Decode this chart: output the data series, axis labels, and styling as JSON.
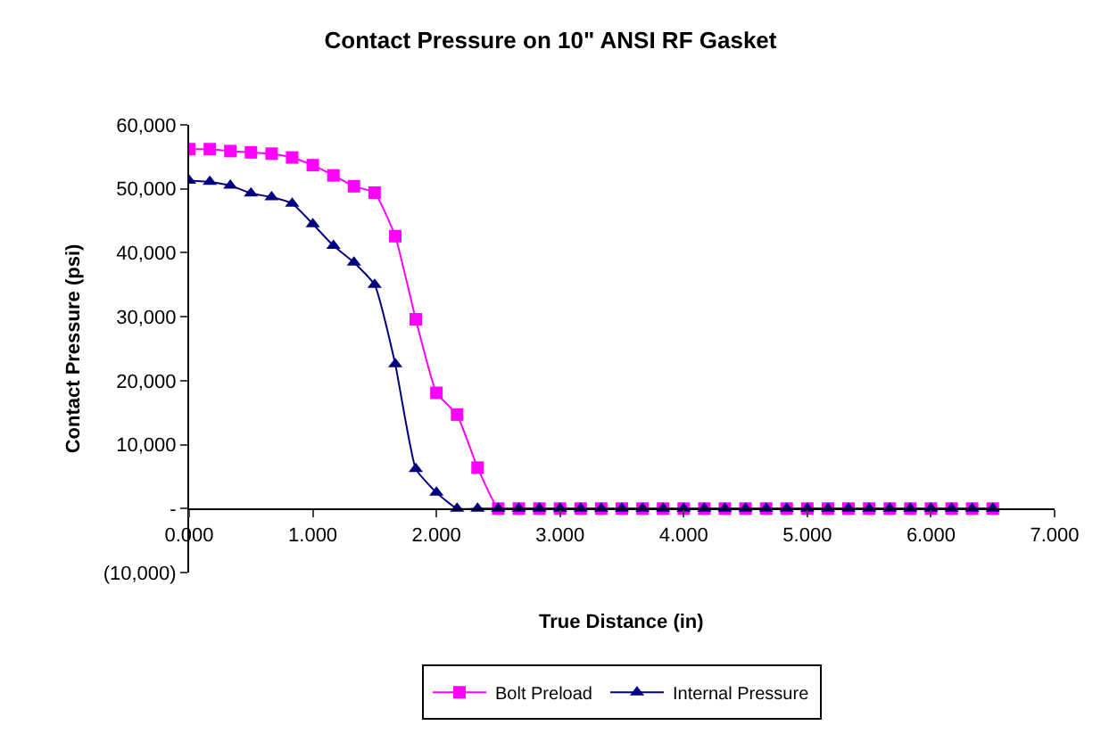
{
  "chart_data": {
    "type": "line",
    "title": "Contact Pressure on 10\" ANSI RF Gasket",
    "xlabel": "True Distance (in)",
    "ylabel": "Contact Pressure (psi)",
    "x": [
      0,
      0.167,
      0.333,
      0.5,
      0.667,
      0.833,
      1,
      1.167,
      1.333,
      1.5,
      1.667,
      1.833,
      2,
      2.167,
      2.333,
      2.5,
      2.667,
      2.833,
      3,
      3.167,
      3.333,
      3.5,
      3.667,
      3.833,
      4,
      4.167,
      4.333,
      4.5,
      4.667,
      4.833,
      5,
      5.167,
      5.333,
      5.5,
      5.667,
      5.833,
      6,
      6.167,
      6.333,
      6.5
    ],
    "series": [
      {
        "name": "Bolt Preload",
        "color": "#ff00ff",
        "marker": "square",
        "values": [
          56200,
          56200,
          55900,
          55700,
          55500,
          54900,
          53700,
          52100,
          50400,
          49400,
          42600,
          29600,
          18100,
          14700,
          6400,
          0,
          0,
          0,
          0,
          0,
          0,
          0,
          0,
          0,
          0,
          0,
          0,
          0,
          0,
          0,
          0,
          0,
          0,
          0,
          0,
          0,
          0,
          0,
          0,
          0
        ]
      },
      {
        "name": "Internal Pressure",
        "color": "#000080",
        "marker": "triangle",
        "values": [
          51300,
          51100,
          50500,
          49300,
          48700,
          47700,
          44500,
          41100,
          38500,
          35000,
          22600,
          6200,
          2500,
          0,
          0,
          0,
          0,
          0,
          0,
          0,
          0,
          0,
          0,
          0,
          0,
          0,
          0,
          0,
          0,
          0,
          0,
          0,
          0,
          0,
          0,
          0,
          0,
          0,
          0,
          0
        ]
      }
    ],
    "xlim": [
      0,
      7
    ],
    "xticks": [
      {
        "value": 0,
        "label": "0.000"
      },
      {
        "value": 1,
        "label": "1.000"
      },
      {
        "value": 2,
        "label": "2.000"
      },
      {
        "value": 3,
        "label": "3.000"
      },
      {
        "value": 4,
        "label": "4.000"
      },
      {
        "value": 5,
        "label": "5.000"
      },
      {
        "value": 6,
        "label": "6.000"
      },
      {
        "value": 7,
        "label": "7.000"
      }
    ],
    "ylim": [
      -10000,
      60000
    ],
    "yticks": [
      {
        "value": -10000,
        "label": "(10,000)"
      },
      {
        "value": 0,
        "label": "-"
      },
      {
        "value": 10000,
        "label": "10,000"
      },
      {
        "value": 20000,
        "label": "20,000"
      },
      {
        "value": 30000,
        "label": "30,000"
      },
      {
        "value": 40000,
        "label": "40,000"
      },
      {
        "value": 50000,
        "label": "50,000"
      },
      {
        "value": 60000,
        "label": "60,000"
      }
    ],
    "grid": false,
    "legend": "bottom",
    "line_style": "solid"
  }
}
